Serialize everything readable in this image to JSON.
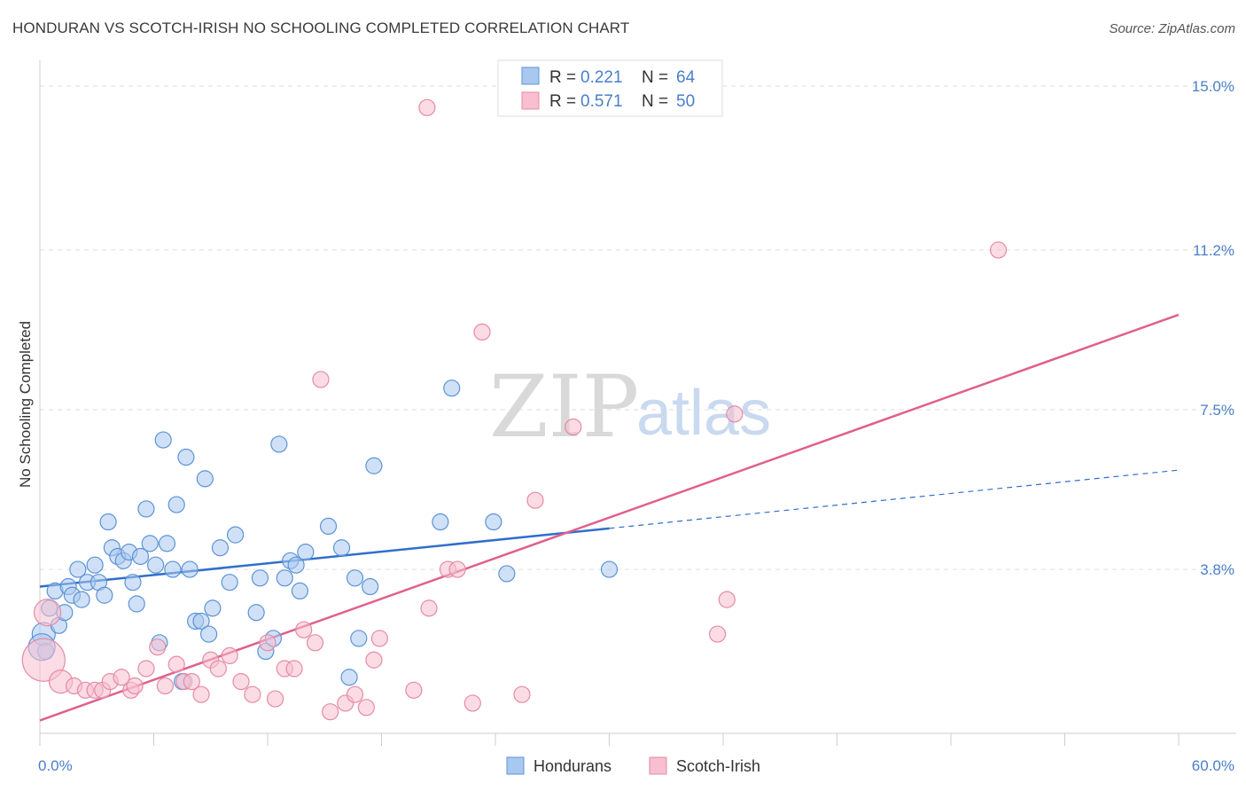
{
  "title": "HONDURAN VS SCOTCH-IRISH NO SCHOOLING COMPLETED CORRELATION CHART",
  "source": "Source: ZipAtlas.com",
  "watermark": {
    "zip": "ZIP",
    "atlas": "atlas"
  },
  "colors": {
    "blue_fill": "#a9c8f0",
    "blue_stroke": "#5b93d6",
    "blue_line": "#2f6fcb",
    "pink_fill": "#f7bfd0",
    "pink_stroke": "#e58aa6",
    "pink_line": "#e0608c",
    "grid": "#dddddd",
    "tick_label": "#4a7fc9"
  },
  "legend": {
    "rows": [
      {
        "r_label": "R = ",
        "r_value": "0.221",
        "n_label": "N = ",
        "n_value": "64"
      },
      {
        "r_label": "R = ",
        "r_value": "0.571",
        "n_label": "N = ",
        "n_value": "50"
      }
    ]
  },
  "chart_data": {
    "type": "scatter",
    "title": "HONDURAN VS SCOTCH-IRISH NO SCHOOLING COMPLETED CORRELATION CHART",
    "xlabel": "",
    "ylabel": "No Schooling Completed",
    "xlim": [
      0,
      60
    ],
    "ylim": [
      0,
      15
    ],
    "x_tick_labels": [
      "0.0%",
      "60.0%"
    ],
    "y_ticks": [
      3.8,
      7.5,
      11.2,
      15.0
    ],
    "y_tick_labels": [
      "3.8%",
      "7.5%",
      "11.2%",
      "15.0%"
    ],
    "grid": true,
    "legend_position": "bottom",
    "series": [
      {
        "name": "Hondurans",
        "color": "#a9c8f0",
        "points": [
          [
            0.2,
            2.3
          ],
          [
            0.3,
            1.9
          ],
          [
            0.5,
            2.9
          ],
          [
            0.8,
            3.3
          ],
          [
            1.0,
            2.5
          ],
          [
            1.3,
            2.8
          ],
          [
            1.5,
            3.4
          ],
          [
            1.7,
            3.2
          ],
          [
            2.0,
            3.8
          ],
          [
            2.2,
            3.1
          ],
          [
            2.5,
            3.5
          ],
          [
            2.9,
            3.9
          ],
          [
            3.1,
            3.5
          ],
          [
            3.4,
            3.2
          ],
          [
            3.6,
            4.9
          ],
          [
            3.8,
            4.3
          ],
          [
            4.1,
            4.1
          ],
          [
            4.4,
            4.0
          ],
          [
            4.7,
            4.2
          ],
          [
            4.9,
            3.5
          ],
          [
            5.1,
            3.0
          ],
          [
            5.3,
            4.1
          ],
          [
            5.6,
            5.2
          ],
          [
            5.8,
            4.4
          ],
          [
            6.1,
            3.9
          ],
          [
            6.3,
            2.1
          ],
          [
            6.5,
            6.8
          ],
          [
            6.7,
            4.4
          ],
          [
            7.0,
            3.8
          ],
          [
            7.2,
            5.3
          ],
          [
            7.5,
            1.2
          ],
          [
            7.7,
            6.4
          ],
          [
            7.9,
            3.8
          ],
          [
            8.2,
            2.6
          ],
          [
            8.5,
            2.6
          ],
          [
            8.7,
            5.9
          ],
          [
            8.9,
            2.3
          ],
          [
            9.1,
            2.9
          ],
          [
            9.5,
            4.3
          ],
          [
            10.0,
            3.5
          ],
          [
            10.3,
            4.6
          ],
          [
            11.4,
            2.8
          ],
          [
            11.6,
            3.6
          ],
          [
            11.9,
            1.9
          ],
          [
            12.3,
            2.2
          ],
          [
            12.6,
            6.7
          ],
          [
            12.9,
            3.6
          ],
          [
            13.2,
            4.0
          ],
          [
            13.5,
            3.9
          ],
          [
            13.7,
            3.3
          ],
          [
            14.0,
            4.2
          ],
          [
            15.2,
            4.8
          ],
          [
            15.9,
            4.3
          ],
          [
            16.3,
            1.3
          ],
          [
            16.6,
            3.6
          ],
          [
            16.8,
            2.2
          ],
          [
            17.4,
            3.4
          ],
          [
            17.6,
            6.2
          ],
          [
            21.1,
            4.9
          ],
          [
            21.7,
            8.0
          ],
          [
            23.9,
            4.9
          ],
          [
            24.6,
            3.7
          ],
          [
            30.0,
            3.8
          ],
          [
            0.1,
            2.0
          ]
        ],
        "trend": {
          "x0": 0,
          "y0": 3.4,
          "x1": 30,
          "y1": 4.75,
          "dash_to_x": 60,
          "dash_to_y": 6.1
        }
      },
      {
        "name": "Scotch-Irish",
        "color": "#f7bfd0",
        "points": [
          [
            0.2,
            1.7
          ],
          [
            0.4,
            2.8
          ],
          [
            1.1,
            1.2
          ],
          [
            1.8,
            1.1
          ],
          [
            2.4,
            1.0
          ],
          [
            2.9,
            1.0
          ],
          [
            3.3,
            1.0
          ],
          [
            3.7,
            1.2
          ],
          [
            4.3,
            1.3
          ],
          [
            4.8,
            1.0
          ],
          [
            5.0,
            1.1
          ],
          [
            5.6,
            1.5
          ],
          [
            6.2,
            2.0
          ],
          [
            6.6,
            1.1
          ],
          [
            7.2,
            1.6
          ],
          [
            7.6,
            1.2
          ],
          [
            8.0,
            1.2
          ],
          [
            8.5,
            0.9
          ],
          [
            9.0,
            1.7
          ],
          [
            9.4,
            1.5
          ],
          [
            10.0,
            1.8
          ],
          [
            10.6,
            1.2
          ],
          [
            11.2,
            0.9
          ],
          [
            12.0,
            2.1
          ],
          [
            12.4,
            0.8
          ],
          [
            12.9,
            1.5
          ],
          [
            13.4,
            1.5
          ],
          [
            13.9,
            2.4
          ],
          [
            14.5,
            2.1
          ],
          [
            14.8,
            8.2
          ],
          [
            15.3,
            0.5
          ],
          [
            16.1,
            0.7
          ],
          [
            16.6,
            0.9
          ],
          [
            17.2,
            0.6
          ],
          [
            17.6,
            1.7
          ],
          [
            17.9,
            2.2
          ],
          [
            19.7,
            1.0
          ],
          [
            20.4,
            14.5
          ],
          [
            20.5,
            2.9
          ],
          [
            21.5,
            3.8
          ],
          [
            22.0,
            3.8
          ],
          [
            22.8,
            0.7
          ],
          [
            23.3,
            9.3
          ],
          [
            25.4,
            0.9
          ],
          [
            26.1,
            5.4
          ],
          [
            28.1,
            7.1
          ],
          [
            35.7,
            2.3
          ],
          [
            36.2,
            3.1
          ],
          [
            36.6,
            7.4
          ],
          [
            50.5,
            11.2
          ]
        ],
        "trend": {
          "x0": 0,
          "y0": 0.3,
          "x1": 60,
          "y1": 9.7
        }
      }
    ]
  },
  "bottom_legend": [
    {
      "label": "Hondurans"
    },
    {
      "label": "Scotch-Irish"
    }
  ]
}
